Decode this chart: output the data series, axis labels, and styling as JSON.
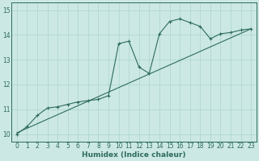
{
  "xlabel": "Humidex (Indice chaleur)",
  "bg_color": "#cce8e4",
  "line_color": "#2d6b5e",
  "grid_color": "#aad4cc",
  "xlim": [
    -0.5,
    23.5
  ],
  "ylim": [
    9.7,
    15.3
  ],
  "xticks": [
    0,
    1,
    2,
    3,
    4,
    5,
    6,
    7,
    8,
    9,
    10,
    11,
    12,
    13,
    14,
    15,
    16,
    17,
    18,
    19,
    20,
    21,
    22,
    23
  ],
  "yticks": [
    10,
    11,
    12,
    13,
    14,
    15
  ],
  "line1_x": [
    0,
    1,
    2,
    3,
    4,
    5,
    6,
    7,
    8,
    9,
    10,
    11,
    12,
    13,
    14,
    15,
    16,
    17,
    18,
    19,
    20,
    21,
    22,
    23
  ],
  "line1_y": [
    10.0,
    10.3,
    10.75,
    11.05,
    11.1,
    11.2,
    11.3,
    11.35,
    11.4,
    11.55,
    13.65,
    13.75,
    12.7,
    12.45,
    14.05,
    14.55,
    14.65,
    14.5,
    14.35,
    13.85,
    14.05,
    14.1,
    14.2,
    14.25
  ],
  "line2_x": [
    0,
    23
  ],
  "line2_y": [
    10.05,
    14.25
  ],
  "marker": "+"
}
